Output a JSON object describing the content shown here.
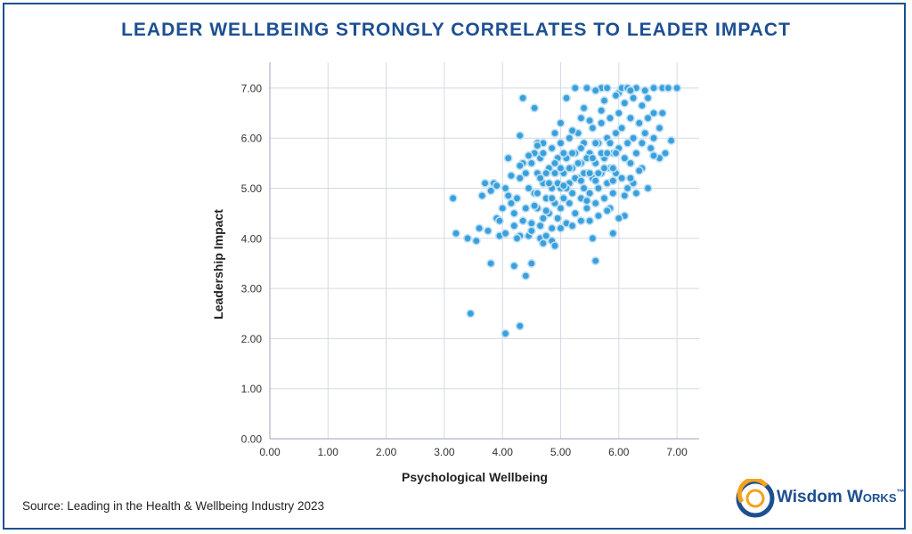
{
  "page": {
    "title": "LEADER WELLBEING STRONGLY CORRELATES TO LEADER IMPACT",
    "source": "Source: Leading in the Health & Wellbeing Industry 2023"
  },
  "logo": {
    "word1": "Wisdom",
    "word2": "Works",
    "tm": "™",
    "colors": {
      "blue": "#1d4f91",
      "orange": "#f4a21d"
    }
  },
  "colors": {
    "frame": "#1d4f91",
    "title": "#1d4f91",
    "point_fill": "#3aa0dc",
    "point_stroke": "#bfe0f5",
    "grid": "#d5d9e6"
  },
  "chart_data": {
    "type": "scatter",
    "title": "LEADER WELLBEING STRONGLY CORRELATES TO LEADER IMPACT",
    "xlabel": "Psychological Wellbeing",
    "ylabel": "Leadership Impact",
    "xlim": [
      0,
      7.4
    ],
    "ylim": [
      0,
      7.5
    ],
    "xticks": [
      "0.00",
      "1.00",
      "2.00",
      "3.00",
      "4.00",
      "5.00",
      "6.00",
      "7.00"
    ],
    "yticks": [
      "0.00",
      "1.00",
      "2.00",
      "3.00",
      "4.00",
      "5.00",
      "6.00",
      "7.00"
    ],
    "grid": true,
    "points": [
      [
        3.15,
        4.8
      ],
      [
        3.2,
        4.1
      ],
      [
        3.45,
        2.5
      ],
      [
        3.4,
        4.0
      ],
      [
        3.55,
        3.95
      ],
      [
        3.6,
        4.2
      ],
      [
        3.65,
        4.85
      ],
      [
        3.7,
        5.1
      ],
      [
        3.75,
        4.15
      ],
      [
        3.8,
        4.95
      ],
      [
        3.8,
        3.5
      ],
      [
        3.85,
        5.1
      ],
      [
        3.9,
        4.4
      ],
      [
        3.95,
        4.05
      ],
      [
        4.05,
        4.1
      ],
      [
        4.05,
        2.1
      ],
      [
        4.1,
        5.6
      ],
      [
        4.15,
        4.7
      ],
      [
        4.2,
        3.45
      ],
      [
        4.3,
        4.05
      ],
      [
        4.3,
        2.25
      ],
      [
        4.3,
        6.05
      ],
      [
        4.35,
        6.8
      ],
      [
        4.4,
        3.25
      ],
      [
        4.45,
        4.05
      ],
      [
        4.5,
        3.5
      ],
      [
        4.55,
        6.6
      ],
      [
        4.6,
        5.9
      ],
      [
        4.65,
        4.0
      ],
      [
        4.7,
        3.9
      ],
      [
        4.75,
        4.05
      ],
      [
        4.85,
        3.95
      ],
      [
        4.9,
        3.85
      ],
      [
        5.0,
        6.3
      ],
      [
        5.1,
        6.8
      ],
      [
        5.25,
        7.0
      ],
      [
        5.45,
        7.0
      ],
      [
        5.55,
        4.0
      ],
      [
        5.6,
        3.55
      ],
      [
        5.7,
        7.0
      ],
      [
        5.8,
        7.0
      ],
      [
        5.9,
        4.1
      ],
      [
        6.0,
        6.9
      ],
      [
        6.05,
        7.0
      ],
      [
        6.15,
        7.0
      ],
      [
        6.3,
        7.0
      ],
      [
        6.6,
        7.0
      ],
      [
        6.75,
        7.0
      ],
      [
        6.85,
        7.0
      ],
      [
        7.0,
        7.0
      ],
      [
        6.9,
        5.95
      ],
      [
        6.7,
        5.6
      ],
      [
        6.8,
        5.7
      ],
      [
        6.6,
        6.5
      ],
      [
        6.5,
        6.8
      ],
      [
        6.4,
        6.65
      ],
      [
        6.5,
        5.0
      ],
      [
        6.25,
        5.1
      ],
      [
        6.1,
        4.45
      ],
      [
        6.0,
        4.4
      ],
      [
        5.85,
        4.6
      ],
      [
        4.2,
        4.5
      ],
      [
        4.25,
        4.8
      ],
      [
        4.3,
        5.2
      ],
      [
        4.35,
        5.5
      ],
      [
        4.4,
        4.6
      ],
      [
        4.45,
        5.0
      ],
      [
        4.5,
        4.3
      ],
      [
        4.55,
        4.9
      ],
      [
        4.6,
        5.3
      ],
      [
        4.6,
        4.6
      ],
      [
        4.65,
        5.6
      ],
      [
        4.7,
        4.4
      ],
      [
        4.7,
        5.1
      ],
      [
        4.75,
        4.8
      ],
      [
        4.8,
        5.4
      ],
      [
        4.8,
        4.5
      ],
      [
        4.85,
        5.0
      ],
      [
        4.85,
        5.8
      ],
      [
        4.9,
        4.7
      ],
      [
        4.9,
        5.3
      ],
      [
        4.95,
        4.4
      ],
      [
        4.95,
        5.6
      ],
      [
        5.0,
        5.0
      ],
      [
        5.0,
        4.6
      ],
      [
        5.0,
        5.9
      ],
      [
        5.05,
        5.3
      ],
      [
        5.05,
        4.8
      ],
      [
        5.1,
        5.6
      ],
      [
        5.1,
        4.3
      ],
      [
        5.15,
        5.1
      ],
      [
        5.15,
        6.0
      ],
      [
        5.2,
        4.9
      ],
      [
        5.2,
        5.4
      ],
      [
        5.25,
        4.5
      ],
      [
        5.25,
        5.7
      ],
      [
        5.3,
        5.2
      ],
      [
        5.3,
        6.1
      ],
      [
        5.35,
        4.8
      ],
      [
        5.35,
        5.5
      ],
      [
        5.4,
        5.0
      ],
      [
        5.4,
        5.9
      ],
      [
        5.45,
        4.6
      ],
      [
        5.45,
        5.3
      ],
      [
        5.5,
        5.7
      ],
      [
        5.5,
        4.9
      ],
      [
        5.55,
        6.2
      ],
      [
        5.55,
        5.2
      ],
      [
        5.6,
        5.5
      ],
      [
        5.6,
        4.7
      ],
      [
        5.65,
        5.9
      ],
      [
        5.65,
        5.0
      ],
      [
        5.7,
        5.3
      ],
      [
        5.7,
        6.3
      ],
      [
        5.75,
        4.8
      ],
      [
        5.75,
        5.6
      ],
      [
        5.8,
        5.1
      ],
      [
        5.8,
        6.0
      ],
      [
        5.85,
        5.4
      ],
      [
        5.85,
        6.4
      ],
      [
        5.9,
        5.7
      ],
      [
        5.9,
        4.9
      ],
      [
        5.95,
        6.1
      ],
      [
        5.95,
        5.3
      ],
      [
        6.0,
        5.8
      ],
      [
        6.0,
        6.5
      ],
      [
        6.05,
        5.2
      ],
      [
        6.05,
        6.2
      ],
      [
        6.1,
        5.6
      ],
      [
        6.1,
        6.7
      ],
      [
        6.15,
        5.9
      ],
      [
        6.15,
        5.0
      ],
      [
        6.2,
        6.4
      ],
      [
        6.2,
        5.5
      ],
      [
        6.25,
        6.0
      ],
      [
        6.25,
        6.8
      ],
      [
        6.3,
        5.7
      ],
      [
        6.35,
        6.3
      ],
      [
        6.4,
        5.9
      ],
      [
        6.45,
        6.1
      ],
      [
        6.5,
        6.4
      ],
      [
        6.55,
        5.8
      ],
      [
        6.6,
        6.0
      ],
      [
        6.7,
        6.2
      ],
      [
        6.75,
        6.5
      ],
      [
        6.3,
        4.9
      ],
      [
        6.4,
        5.4
      ],
      [
        6.2,
        5.2
      ],
      [
        4.4,
        5.3
      ],
      [
        4.5,
        5.5
      ],
      [
        4.6,
        4.9
      ],
      [
        4.65,
        5.2
      ],
      [
        4.7,
        5.7
      ],
      [
        4.75,
        5.3
      ],
      [
        4.8,
        5.1
      ],
      [
        4.85,
        4.8
      ],
      [
        4.9,
        5.5
      ],
      [
        4.95,
        5.1
      ],
      [
        5.0,
        5.4
      ],
      [
        5.05,
        5.7
      ],
      [
        5.1,
        5.0
      ],
      [
        5.15,
        5.4
      ],
      [
        5.2,
        5.7
      ],
      [
        5.25,
        5.2
      ],
      [
        5.3,
        5.5
      ],
      [
        5.35,
        5.8
      ],
      [
        5.4,
        5.3
      ],
      [
        5.45,
        5.6
      ],
      [
        5.5,
        5.3
      ],
      [
        5.55,
        5.6
      ],
      [
        5.6,
        5.9
      ],
      [
        5.65,
        5.3
      ],
      [
        5.7,
        5.7
      ],
      [
        5.75,
        5.4
      ],
      [
        5.8,
        5.7
      ],
      [
        5.85,
        5.9
      ],
      [
        5.9,
        5.4
      ],
      [
        5.95,
        5.7
      ],
      [
        5.05,
        5.05
      ],
      [
        5.35,
        5.15
      ],
      [
        5.6,
        5.15
      ],
      [
        4.55,
        4.65
      ],
      [
        4.75,
        4.55
      ],
      [
        5.15,
        4.7
      ],
      [
        5.45,
        4.75
      ],
      [
        5.9,
        5.15
      ],
      [
        5.2,
        6.15
      ],
      [
        5.5,
        6.35
      ],
      [
        5.7,
        6.55
      ],
      [
        5.35,
        6.4
      ],
      [
        4.9,
        6.1
      ],
      [
        4.7,
        5.9
      ],
      [
        4.55,
        5.7
      ],
      [
        4.45,
        5.65
      ],
      [
        4.3,
        5.45
      ],
      [
        4.15,
        5.25
      ],
      [
        4.1,
        4.85
      ],
      [
        4.0,
        4.6
      ],
      [
        3.95,
        4.35
      ],
      [
        4.2,
        4.25
      ],
      [
        4.35,
        4.35
      ],
      [
        4.5,
        4.15
      ],
      [
        4.65,
        4.25
      ],
      [
        4.85,
        4.2
      ],
      [
        5.0,
        4.2
      ],
      [
        5.2,
        4.25
      ],
      [
        5.35,
        4.35
      ],
      [
        5.5,
        4.35
      ],
      [
        5.65,
        4.45
      ],
      [
        5.8,
        4.55
      ],
      [
        6.1,
        4.85
      ],
      [
        6.35,
        5.35
      ],
      [
        6.6,
        5.65
      ],
      [
        6.45,
        6.95
      ],
      [
        6.2,
        6.95
      ],
      [
        5.95,
        6.85
      ],
      [
        5.75,
        6.75
      ],
      [
        5.6,
        6.95
      ],
      [
        5.4,
        6.6
      ],
      [
        4.25,
        4.0
      ],
      [
        4.6,
        5.85
      ],
      [
        4.05,
        5.0
      ],
      [
        3.9,
        5.05
      ]
    ]
  }
}
